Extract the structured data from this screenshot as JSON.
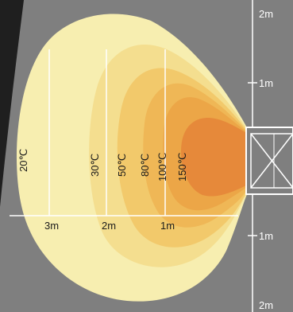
{
  "zones": [
    {
      "temperature": "20℃",
      "color": "#f7eeb0"
    },
    {
      "temperature": "30℃",
      "color": "#f4de8f"
    },
    {
      "temperature": "50℃",
      "color": "#f2c96b"
    },
    {
      "temperature": "80℃",
      "color": "#efb756"
    },
    {
      "temperature": "100℃",
      "color": "#eca647"
    },
    {
      "temperature": "150℃",
      "color": "#e6893a"
    }
  ],
  "horizontal_scale": {
    "labels": [
      "3m",
      "2m",
      "1m"
    ]
  },
  "vertical_scale": {
    "labels": [
      "2m",
      "1m",
      "1m",
      "2m"
    ]
  },
  "colors": {
    "background": "#7f7f7f",
    "outer_dark": "#1f1f1f",
    "line": "#ffffff"
  }
}
